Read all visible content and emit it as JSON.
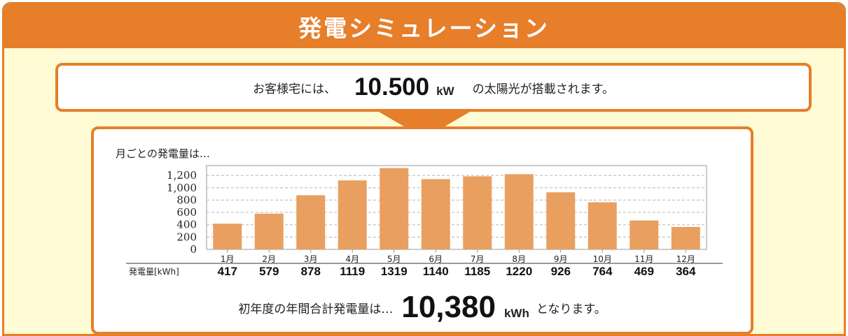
{
  "header": {
    "title": "発電シミュレーション"
  },
  "capacity": {
    "prefix": "お客様宅には、",
    "value": "10.500",
    "unit": "kW",
    "suffix": "の太陽光が搭載されます。"
  },
  "monthly": {
    "label": "月ごとの発電量は…"
  },
  "annual": {
    "prefix": "初年度の年間合計発電量は…",
    "value": "10,380",
    "unit": "kWh",
    "suffix": "となります。"
  },
  "colors": {
    "accent": "#e67e2a",
    "bar": "#e99f5f",
    "background": "#fffbd4"
  },
  "chart_data": {
    "type": "bar",
    "categories": [
      "1月",
      "2月",
      "3月",
      "4月",
      "5月",
      "6月",
      "7月",
      "8月",
      "9月",
      "10月",
      "11月",
      "12月"
    ],
    "values": [
      417,
      579,
      878,
      1119,
      1319,
      1140,
      1185,
      1220,
      926,
      764,
      469,
      364
    ],
    "value_row_label": "発電量[kWh]",
    "yticks": [
      0,
      200,
      400,
      600,
      800,
      1000,
      1200
    ],
    "ytick_labels": [
      "0",
      "200",
      "400",
      "600",
      "800",
      "1,000",
      "1,200"
    ],
    "ylim": [
      0,
      1360
    ],
    "grid": true
  }
}
